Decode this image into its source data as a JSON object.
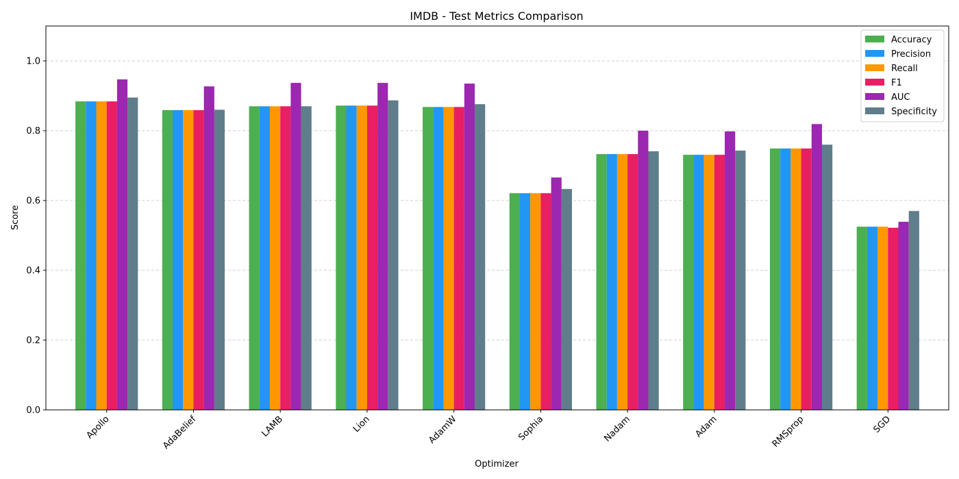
{
  "chart_data": {
    "type": "bar",
    "title": "IMDB - Test Metrics Comparison",
    "xlabel": "Optimizer",
    "ylabel": "Score",
    "ylim": [
      0,
      1.1
    ],
    "yticks": [
      0.0,
      0.2,
      0.4,
      0.6,
      0.8,
      1.0
    ],
    "grid": "y-dashed",
    "legend_position": "top-right",
    "categories": [
      "Apollo",
      "AdaBelief",
      "LAMB",
      "Lion",
      "AdamW",
      "Sophia",
      "Nadam",
      "Adam",
      "RMSprop",
      "SGD"
    ],
    "series": [
      {
        "name": "Accuracy",
        "color": "#4caf50",
        "values": [
          0.884,
          0.859,
          0.87,
          0.872,
          0.868,
          0.621,
          0.733,
          0.731,
          0.749,
          0.525
        ]
      },
      {
        "name": "Precision",
        "color": "#2196f3",
        "values": [
          0.884,
          0.859,
          0.87,
          0.872,
          0.868,
          0.621,
          0.733,
          0.731,
          0.749,
          0.525
        ]
      },
      {
        "name": "Recall",
        "color": "#ff9800",
        "values": [
          0.884,
          0.859,
          0.87,
          0.872,
          0.868,
          0.621,
          0.733,
          0.731,
          0.749,
          0.525
        ]
      },
      {
        "name": "F1",
        "color": "#e91e63",
        "values": [
          0.884,
          0.859,
          0.87,
          0.872,
          0.868,
          0.621,
          0.733,
          0.731,
          0.749,
          0.522
        ]
      },
      {
        "name": "AUC",
        "color": "#9c27b0",
        "values": [
          0.947,
          0.927,
          0.937,
          0.937,
          0.935,
          0.666,
          0.8,
          0.798,
          0.819,
          0.539
        ]
      },
      {
        "name": "Specificity",
        "color": "#607d8b",
        "values": [
          0.895,
          0.86,
          0.87,
          0.887,
          0.876,
          0.633,
          0.741,
          0.743,
          0.76,
          0.57
        ]
      }
    ]
  }
}
